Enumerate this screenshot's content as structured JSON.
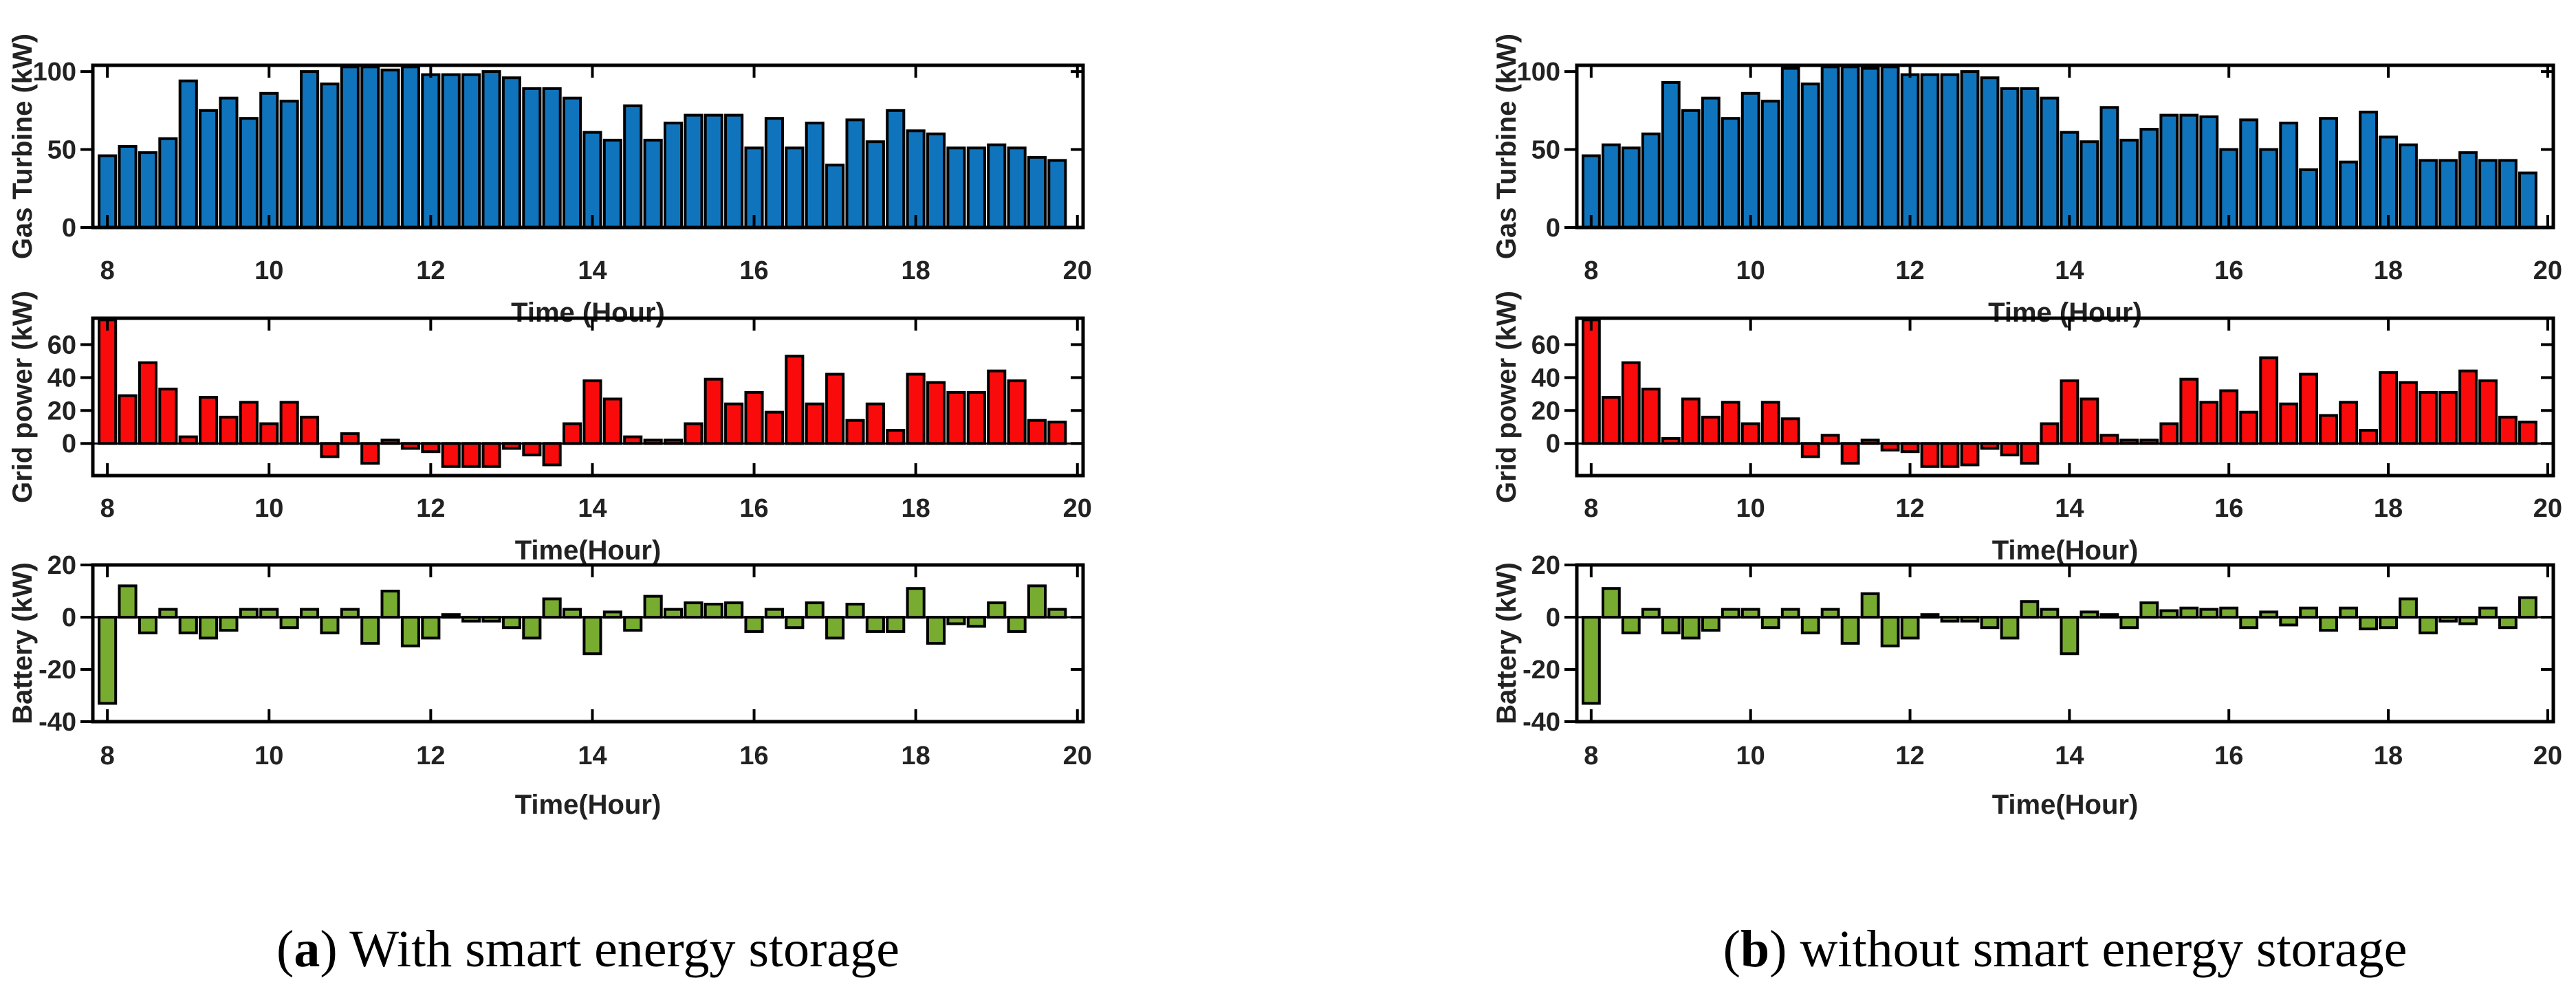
{
  "captions": {
    "a": {
      "pre": "(",
      "letter": "a",
      "post": ") With smart energy storage"
    },
    "b": {
      "pre": "(",
      "letter": "b",
      "post": ") without smart energy storage"
    }
  },
  "chart_data": [
    {
      "id": "gas-turbine-chart-a",
      "panel": "a",
      "type": "bar",
      "ylabel": "Gas Turbine (kW)",
      "xlabel": "Time (Hour)",
      "bar_color": "#1074BC",
      "edge_color": "#000000",
      "x_start": 8,
      "x_step": 0.25,
      "xlim": [
        7.82,
        20.07
      ],
      "ylim": [
        0,
        104
      ],
      "xticks": [
        8,
        10,
        12,
        14,
        16,
        18,
        20
      ],
      "yticks": [
        0,
        50,
        100
      ],
      "grid": false,
      "legend": "none",
      "values": [
        46,
        52,
        48,
        57,
        94,
        75,
        83,
        70,
        86,
        81,
        100,
        92,
        103,
        103,
        101,
        103,
        98,
        98,
        98,
        100,
        96,
        89,
        89,
        83,
        61,
        56,
        78,
        56,
        67,
        72,
        72,
        72,
        51,
        70,
        51,
        67,
        40,
        69,
        55,
        75,
        62,
        60,
        51,
        51,
        53,
        51,
        45,
        43
      ]
    },
    {
      "id": "grid-power-chart-a",
      "panel": "a",
      "type": "bar",
      "ylabel": "Grid power (kW)",
      "xlabel": "Time(Hour)",
      "bar_color": "#FA0B0B",
      "edge_color": "#000000",
      "x_start": 8,
      "x_step": 0.25,
      "xlim": [
        7.82,
        20.07
      ],
      "ylim": [
        -19.5,
        76
      ],
      "xticks": [
        8,
        10,
        12,
        14,
        16,
        18,
        20
      ],
      "yticks": [
        0,
        20,
        40,
        60
      ],
      "grid": false,
      "legend": "none",
      "values": [
        75,
        29,
        49,
        33,
        4,
        28,
        16,
        25,
        12,
        25,
        16,
        -8,
        6,
        -12,
        2,
        -3,
        -5,
        -14,
        -14,
        -14,
        -3,
        -7,
        -13,
        12,
        38,
        27,
        4,
        2,
        2,
        12,
        39,
        24,
        31,
        19,
        53,
        24,
        42,
        14,
        24,
        8,
        42,
        37,
        31,
        31,
        44,
        38,
        14,
        13
      ]
    },
    {
      "id": "battery-chart-a",
      "panel": "a",
      "type": "bar",
      "ylabel": "Battery (kW)",
      "xlabel": "Time(Hour)",
      "bar_color": "#77AC30",
      "edge_color": "#000000",
      "x_start": 8,
      "x_step": 0.25,
      "xlim": [
        7.82,
        20.07
      ],
      "ylim": [
        -40,
        20
      ],
      "xticks": [
        8,
        10,
        12,
        14,
        16,
        18,
        20
      ],
      "yticks": [
        20,
        0,
        -20,
        -40
      ],
      "grid": false,
      "legend": "none",
      "values": [
        -33,
        12,
        -6,
        3,
        -6,
        -8,
        -5,
        3,
        3,
        -4,
        3,
        -6,
        3,
        -10,
        10,
        -11,
        -8,
        1,
        -1.5,
        -1.5,
        -4,
        -8,
        7,
        3,
        -14,
        2,
        -5,
        8,
        3,
        5.5,
        5,
        5.5,
        -5.5,
        3,
        -4,
        5.5,
        -8,
        5,
        -5.5,
        -5.5,
        11,
        -10,
        -2.5,
        -3.5,
        5.5,
        -5.5,
        12,
        3
      ]
    },
    {
      "id": "gas-turbine-chart-b",
      "panel": "b",
      "type": "bar",
      "ylabel": "Gas Turbine (kW)",
      "xlabel": "Time (Hour)",
      "bar_color": "#1074BC",
      "edge_color": "#000000",
      "x_start": 8,
      "x_step": 0.25,
      "xlim": [
        7.82,
        20.07
      ],
      "ylim": [
        0,
        104
      ],
      "xticks": [
        8,
        10,
        12,
        14,
        16,
        18,
        20
      ],
      "yticks": [
        0,
        50,
        100
      ],
      "grid": false,
      "legend": "none",
      "values": [
        46,
        53,
        51,
        60,
        93,
        75,
        83,
        70,
        86,
        81,
        102,
        92,
        103,
        103,
        102,
        103,
        98,
        98,
        98,
        100,
        96,
        89,
        89,
        83,
        61,
        55,
        77,
        56,
        63,
        72,
        72,
        71,
        50,
        69,
        50,
        67,
        37,
        70,
        42,
        74,
        58,
        53,
        43,
        43,
        48,
        43,
        43,
        35
      ]
    },
    {
      "id": "grid-power-chart-b",
      "panel": "b",
      "type": "bar",
      "ylabel": "Grid power (kW)",
      "xlabel": "Time(Hour)",
      "bar_color": "#FA0B0B",
      "edge_color": "#000000",
      "x_start": 8,
      "x_step": 0.25,
      "xlim": [
        7.82,
        20.07
      ],
      "ylim": [
        -19.5,
        76
      ],
      "xticks": [
        8,
        10,
        12,
        14,
        16,
        18,
        20
      ],
      "yticks": [
        0,
        20,
        40,
        60
      ],
      "grid": false,
      "legend": "none",
      "values": [
        75,
        28,
        49,
        33,
        3,
        27,
        16,
        25,
        12,
        25,
        15,
        -8,
        5,
        -12,
        2,
        -4,
        -5,
        -14,
        -14,
        -13,
        -3,
        -7,
        -12,
        12,
        38,
        27,
        5,
        2,
        2,
        12,
        39,
        25,
        32,
        19,
        52,
        24,
        42,
        17,
        25,
        8,
        43,
        37,
        31,
        31,
        44,
        38,
        16,
        13
      ]
    },
    {
      "id": "battery-chart-b",
      "panel": "b",
      "type": "bar",
      "ylabel": "Battery (kW)",
      "xlabel": "Time(Hour)",
      "bar_color": "#77AC30",
      "edge_color": "#000000",
      "x_start": 8,
      "x_step": 0.25,
      "xlim": [
        7.82,
        20.07
      ],
      "ylim": [
        -40,
        20
      ],
      "xticks": [
        8,
        10,
        12,
        14,
        16,
        18,
        20
      ],
      "yticks": [
        20,
        0,
        -20,
        -40
      ],
      "grid": false,
      "legend": "none",
      "values": [
        -33,
        11,
        -6,
        3,
        -6,
        -8,
        -5,
        3,
        3,
        -4,
        3,
        -6,
        3,
        -10,
        9,
        -11,
        -8,
        1,
        -1.5,
        -1.5,
        -4,
        -8,
        6,
        3,
        -14,
        2,
        1,
        -4,
        5.5,
        2.5,
        3.5,
        3,
        3.5,
        -4,
        2,
        -3,
        3.5,
        -5,
        3.5,
        -4.5,
        -4,
        7,
        -6,
        -1.5,
        -2.5,
        3.5,
        -4,
        7.5
      ]
    }
  ]
}
